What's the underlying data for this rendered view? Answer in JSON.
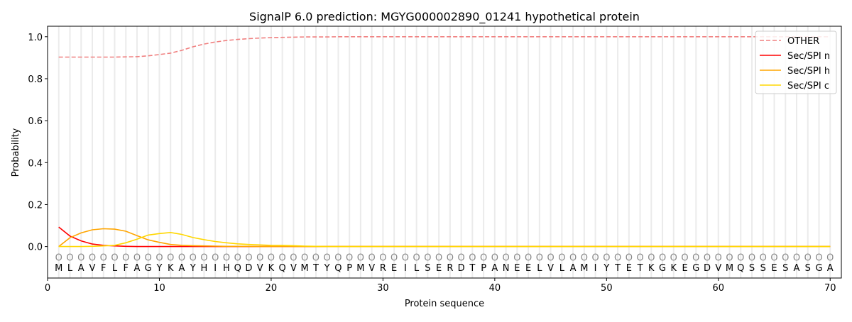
{
  "chart_data": {
    "type": "line",
    "title": "SignalP 6.0 prediction: MGYG000002890_01241 hypothetical protein",
    "xlabel": "Protein sequence",
    "ylabel": "Probability",
    "xlim": [
      0,
      71
    ],
    "ylim": [
      -0.15,
      1.05
    ],
    "xticks": [
      0,
      10,
      20,
      30,
      40,
      50,
      60,
      70
    ],
    "yticks": [
      0.0,
      0.2,
      0.4,
      0.6,
      0.8,
      1.0
    ],
    "ytick_labels": [
      "0.0",
      "0.2",
      "0.4",
      "0.6",
      "0.8",
      "1.0"
    ],
    "legend_position": "top-right",
    "sequence": [
      "M",
      "L",
      "A",
      "V",
      "F",
      "L",
      "F",
      "A",
      "G",
      "Y",
      "K",
      "A",
      "Y",
      "H",
      "I",
      "H",
      "Q",
      "D",
      "V",
      "K",
      "Q",
      "V",
      "M",
      "T",
      "Y",
      "Q",
      "P",
      "M",
      "V",
      "R",
      "E",
      "I",
      "L",
      "S",
      "E",
      "R",
      "D",
      "T",
      "P",
      "A",
      "N",
      "E",
      "E",
      "L",
      "V",
      "L",
      "A",
      "M",
      "I",
      "Y",
      "T",
      "E",
      "T",
      "K",
      "G",
      "K",
      "E",
      "G",
      "D",
      "V",
      "M",
      "Q",
      "S",
      "S",
      "E",
      "S",
      "A",
      "S",
      "G",
      "A"
    ],
    "region_label": "O",
    "series": [
      {
        "name": "OTHER",
        "color": "#f08080",
        "dash": true,
        "values": [
          0.903,
          0.903,
          0.903,
          0.903,
          0.903,
          0.903,
          0.904,
          0.905,
          0.909,
          0.915,
          0.922,
          0.935,
          0.952,
          0.965,
          0.975,
          0.982,
          0.987,
          0.991,
          0.994,
          0.996,
          0.997,
          0.998,
          0.999,
          0.999,
          0.999,
          1,
          1,
          1,
          1,
          1,
          1,
          1,
          1,
          1,
          1,
          1,
          1,
          1,
          1,
          1,
          1,
          1,
          1,
          1,
          1,
          1,
          1,
          1,
          1,
          1,
          1,
          1,
          1,
          1,
          1,
          1,
          1,
          1,
          1,
          1,
          1,
          1,
          1,
          1,
          1,
          1,
          1,
          1,
          1,
          1
        ]
      },
      {
        "name": "Sec/SPI n",
        "color": "#ff0000",
        "dash": false,
        "values": [
          0.093,
          0.05,
          0.027,
          0.012,
          0.006,
          0.003,
          0.001,
          0,
          0,
          0,
          0,
          0,
          0,
          0,
          0,
          0,
          0,
          0,
          0,
          0,
          0,
          0,
          0,
          0,
          0,
          0,
          0,
          0,
          0,
          0,
          0,
          0,
          0,
          0,
          0,
          0,
          0,
          0,
          0,
          0,
          0,
          0,
          0,
          0,
          0,
          0,
          0,
          0,
          0,
          0,
          0,
          0,
          0,
          0,
          0,
          0,
          0,
          0,
          0,
          0,
          0,
          0,
          0,
          0,
          0,
          0,
          0,
          0,
          0,
          0
        ]
      },
      {
        "name": "Sec/SPI h",
        "color": "#ffa500",
        "dash": false,
        "values": [
          0,
          0.042,
          0.065,
          0.08,
          0.085,
          0.083,
          0.073,
          0.052,
          0.032,
          0.02,
          0.01,
          0.006,
          0.004,
          0.003,
          0.002,
          0.001,
          0.001,
          0.001,
          0,
          0,
          0,
          0,
          0,
          0,
          0,
          0,
          0,
          0,
          0,
          0,
          0,
          0,
          0,
          0,
          0,
          0,
          0,
          0,
          0,
          0,
          0,
          0,
          0,
          0,
          0,
          0,
          0,
          0,
          0,
          0,
          0,
          0,
          0,
          0,
          0,
          0,
          0,
          0,
          0,
          0,
          0,
          0,
          0,
          0,
          0,
          0,
          0,
          0,
          0,
          0
        ]
      },
      {
        "name": "Sec/SPI c",
        "color": "#ffd700",
        "dash": false,
        "values": [
          0,
          0,
          0,
          0.001,
          0.003,
          0.006,
          0.018,
          0.035,
          0.055,
          0.062,
          0.067,
          0.058,
          0.043,
          0.033,
          0.024,
          0.018,
          0.013,
          0.01,
          0.008,
          0.006,
          0.005,
          0.004,
          0.002,
          0.001,
          0,
          0,
          0,
          0,
          0,
          0,
          0,
          0,
          0,
          0,
          0,
          0,
          0,
          0,
          0,
          0,
          0,
          0,
          0,
          0,
          0,
          0,
          0,
          0,
          0,
          0,
          0,
          0,
          0,
          0,
          0,
          0,
          0,
          0,
          0,
          0,
          0,
          0,
          0,
          0,
          0,
          0,
          0,
          0,
          0,
          0
        ]
      }
    ]
  }
}
